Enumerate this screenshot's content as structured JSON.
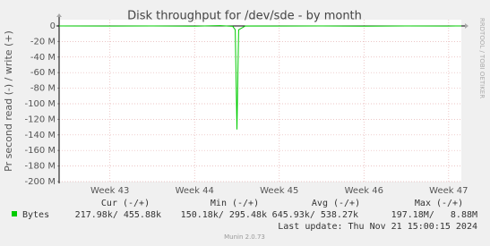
{
  "chart_data": {
    "type": "line",
    "title": "Disk throughput for /dev/sde - by month",
    "y_label": "Pr second read (-) / write (+)",
    "x": [
      42.4,
      43.0,
      43.5,
      44.0,
      44.3,
      44.45,
      44.48,
      44.5,
      44.52,
      44.6,
      45.0,
      45.5,
      46.0,
      46.5,
      47.0,
      47.15
    ],
    "series": [
      {
        "name": "Bytes",
        "color": "#00cc00",
        "values": [
          0,
          -200000,
          0,
          -300000,
          400000,
          -500000,
          -5000000,
          -133000000,
          -5000000,
          0,
          -200000,
          0,
          -300000,
          0,
          -200000,
          0
        ]
      }
    ],
    "xlim": [
      42.4,
      47.15
    ],
    "xticks": [
      {
        "value": 43,
        "label": "Week 43"
      },
      {
        "value": 44,
        "label": "Week 44"
      },
      {
        "value": 45,
        "label": "Week 45"
      },
      {
        "value": 46,
        "label": "Week 46"
      },
      {
        "value": 47,
        "label": "Week 47"
      }
    ],
    "ylim": [
      -200000000,
      8000000
    ],
    "yticks": [
      0,
      {
        "value": -20000000,
        "label": "-20 M"
      },
      {
        "value": -40000000,
        "label": "-40 M"
      },
      {
        "value": -60000000,
        "label": "-60 M"
      },
      {
        "value": -80000000,
        "label": "-80 M"
      },
      {
        "value": -100000000,
        "label": "-100 M"
      },
      {
        "value": -120000000,
        "label": "-120 M"
      },
      {
        "value": -140000000,
        "label": "-140 M"
      },
      {
        "value": -160000000,
        "label": "-160 M"
      },
      {
        "value": -180000000,
        "label": "-180 M"
      },
      {
        "value": -200000000,
        "label": "-200 M"
      }
    ],
    "grid": true
  },
  "legend_table": {
    "headers": [
      "Cur (-/+)",
      "Min (-/+)",
      "Avg (-/+)",
      "Max (-/+)"
    ],
    "cells": [
      "217.98k/ 455.88k",
      "150.18k/ 295.48k",
      "645.93k/ 538.27k",
      "197.18M/   8.88M"
    ]
  },
  "last_update": "Last update: Thu Nov 21 15:00:15 2024",
  "watermark": "RRDTOOL / TOBI OETIKER",
  "footer": "Munin 2.0.73"
}
